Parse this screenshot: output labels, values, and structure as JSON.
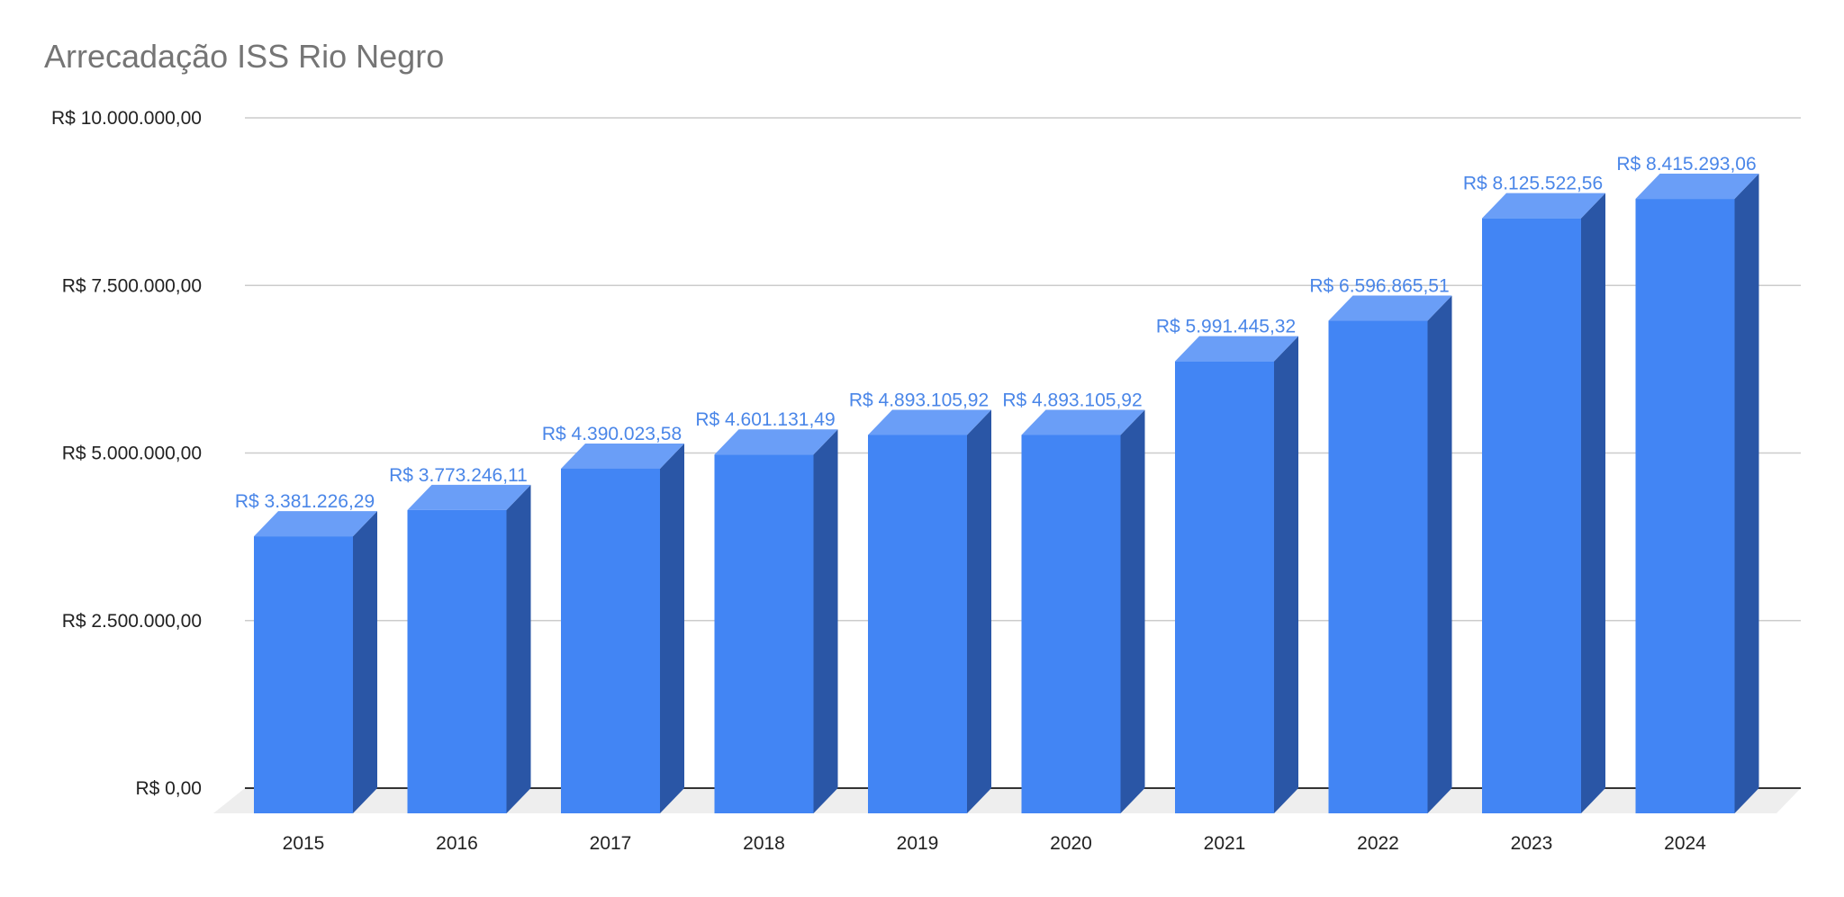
{
  "chart_data": {
    "type": "bar",
    "title": "Arrecadação ISS Rio Negro",
    "xlabel": "",
    "ylabel": "",
    "categories": [
      "2015",
      "2016",
      "2017",
      "2018",
      "2019",
      "2020",
      "2021",
      "2022",
      "2023",
      "2024"
    ],
    "values": [
      3381226.29,
      3773246.11,
      4390023.58,
      4601131.49,
      4893105.92,
      4893105.92,
      5991445.32,
      6596865.51,
      8125522.56,
      8415293.06
    ],
    "data_labels": [
      "R$ 3.381.226,29",
      "R$ 3.773.246,11",
      "R$ 4.390.023,58",
      "R$ 4.601.131,49",
      "R$ 4.893.105,92",
      "R$ 4.893.105,92",
      "R$ 5.991.445,32",
      "R$ 6.596.865,51",
      "R$ 8.125.522,56",
      "R$ 8.415.293,06"
    ],
    "ylim": [
      0,
      10000000
    ],
    "yticks": [
      0,
      2500000,
      5000000,
      7500000,
      10000000
    ],
    "ytick_labels": [
      "R$ 0,00",
      "R$ 2.500.000,00",
      "R$ 5.000.000,00",
      "R$ 7.500.000,00",
      "R$ 10.000.000,00"
    ],
    "grid": true,
    "style": "3d",
    "colors": {
      "bar_front": "#4285f4",
      "bar_side": "#2a56a6",
      "bar_top": "#6a9ef7",
      "data_label": "#4a86e8",
      "grid": "#cccccc",
      "axis": "#333333",
      "floor": "#eeeeee",
      "title": "#757575"
    }
  }
}
